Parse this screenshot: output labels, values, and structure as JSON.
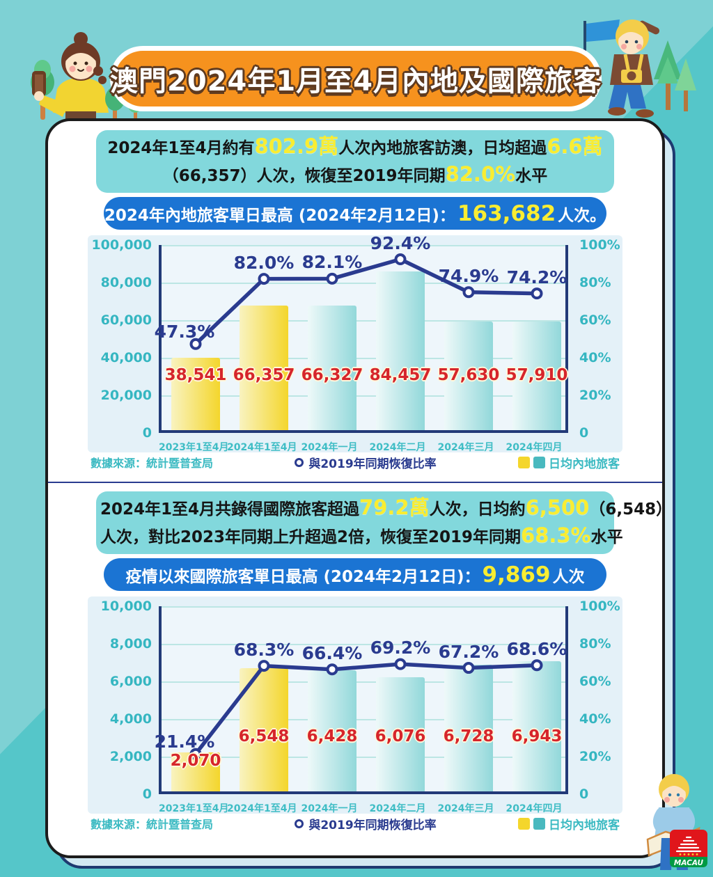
{
  "title": {
    "text": "澳門2024年1月至4月內地及國際旅客"
  },
  "colors": {
    "background": "#7ed1d4",
    "background_dark": "#55c6c9",
    "banner_orange": "#f6921e",
    "banner_blue": "#1b74d3",
    "summary_teal": "#82d8dc",
    "highlight_yellow": "#f9ed32",
    "bar_highlight": "#f4d62c",
    "bar_normal": "#92d8da",
    "line_navy": "#2a3b8f",
    "value_red": "#d6252b",
    "axis_teal": "#35b6c1"
  },
  "sections": [
    {
      "name": "mainland-visitors",
      "summary_lines": [
        [
          {
            "t": "2024年1至4月約有"
          },
          {
            "t": "802.9萬",
            "hl": true
          },
          {
            "t": "人次內地旅客訪澳，日均超過"
          },
          {
            "t": "6.6萬",
            "hl": true
          }
        ],
        [
          {
            "t": "（66,357）人次，恢復至2019年同期"
          },
          {
            "t": "82.0%",
            "hl": true
          },
          {
            "t": "水平"
          }
        ]
      ],
      "banner": [
        {
          "t": "2024年內地旅客單日最高 (2024年2月12日)："
        },
        {
          "t": "163,682",
          "hl": true
        },
        {
          "t": "人次。"
        }
      ],
      "footer": {
        "source": "數據來源：統計暨普查局",
        "line_legend": "與2019年同期恢復比率",
        "bar_legend": "日均內地旅客"
      }
    },
    {
      "name": "international-visitors",
      "summary_lines": [
        [
          {
            "t": "2024年1至4月共錄得國際旅客超過"
          },
          {
            "t": "79.2萬",
            "hl": true
          },
          {
            "t": "人次，日均約"
          },
          {
            "t": "6,500",
            "hl": true
          },
          {
            "t": "（6,548）"
          }
        ],
        [
          {
            "t": "人次，對比2023年同期上升超過2倍，恢復至2019年同期"
          },
          {
            "t": "68.3%",
            "hl": true
          },
          {
            "t": "水平"
          }
        ]
      ],
      "banner": [
        {
          "t": "疫情以來國際旅客單日最高 (2024年2月12日)："
        },
        {
          "t": "9,869",
          "hl": true
        },
        {
          "t": "人次"
        }
      ],
      "footer": {
        "source": "數據來源：統計暨普查局",
        "line_legend": "與2019年同期恢復比率",
        "bar_legend": "日均內地旅客"
      }
    }
  ],
  "chart_data": [
    {
      "type": "bar",
      "title": "2024年內地旅客單日最高 (2024年2月12日)：163,682人次。",
      "categories": [
        "2023年1至4月",
        "2024年1至4月",
        "2024年一月",
        "2024年二月",
        "2024年三月",
        "2024年四月"
      ],
      "series": [
        {
          "name": "日均內地旅客",
          "kind": "bar",
          "values": [
            38541,
            66357,
            66327,
            84457,
            57630,
            57910
          ],
          "labels": [
            "38,541",
            "66,357",
            "66,327",
            "84,457",
            "57,630",
            "57,910"
          ],
          "highlight_indices": [
            0,
            1
          ]
        },
        {
          "name": "與2019年同期恢復比率",
          "kind": "line",
          "unit": "%",
          "values": [
            47.3,
            82.0,
            82.1,
            92.4,
            74.9,
            74.2
          ],
          "labels": [
            "47.3%",
            "82.0%",
            "82.1%",
            "92.4%",
            "74.9%",
            "74.2%"
          ]
        }
      ],
      "left_axis": {
        "min": 0,
        "max": 100000,
        "ticks": [
          "100,000",
          "80,000",
          "60,000",
          "40,000",
          "20,000",
          "0"
        ]
      },
      "right_axis": {
        "min": 0,
        "max": 100,
        "ticks": [
          "100%",
          "80%",
          "60%",
          "40%",
          "20%",
          "0"
        ]
      },
      "grid": true,
      "legend_position": "bottom",
      "source": "數據來源：統計暨普查局"
    },
    {
      "type": "bar",
      "title": "疫情以來國際旅客單日最高 (2024年2月12日)：9,869人次",
      "categories": [
        "2023年1至4月",
        "2024年1至4月",
        "2024年一月",
        "2024年二月",
        "2024年三月",
        "2024年四月"
      ],
      "series": [
        {
          "name": "日均內地旅客",
          "kind": "bar",
          "values": [
            2070,
            6548,
            6428,
            6076,
            6728,
            6943
          ],
          "labels": [
            "2,070",
            "6,548",
            "6,428",
            "6,076",
            "6,728",
            "6,943"
          ],
          "highlight_indices": [
            0,
            1
          ]
        },
        {
          "name": "與2019年同期恢復比率",
          "kind": "line",
          "unit": "%",
          "values": [
            21.4,
            68.3,
            66.4,
            69.2,
            67.2,
            68.6
          ],
          "labels": [
            "21.4%",
            "68.3%",
            "66.4%",
            "69.2%",
            "67.2%",
            "68.6%"
          ]
        }
      ],
      "left_axis": {
        "min": 0,
        "max": 10000,
        "ticks": [
          "10,000",
          "8,000",
          "6,000",
          "4,000",
          "2,000",
          "0"
        ]
      },
      "right_axis": {
        "min": 0,
        "max": 100,
        "ticks": [
          "100%",
          "80%",
          "60%",
          "40%",
          "20%",
          "0"
        ]
      },
      "grid": true,
      "legend_position": "bottom",
      "source": "數據來源：統計暨普查局"
    }
  ]
}
